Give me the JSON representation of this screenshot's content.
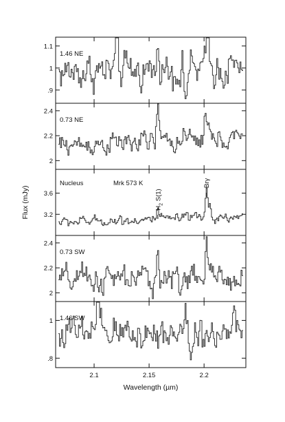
{
  "chart_data": {
    "type": "line",
    "title": "",
    "xlabel": "Wavelength (µm)",
    "ylabel": "Flux (mJy)",
    "xlim": [
      2.065,
      2.238
    ],
    "x_ticks": [
      2.1,
      2.15,
      2.2
    ],
    "x_tick_labels": [
      "2.1",
      "2.15",
      "2.2"
    ],
    "line_style": "histogram-step",
    "line_color": "#333333",
    "object_label": "Mrk 573 K",
    "line_annotations": [
      {
        "text": "H2 S(1)",
        "main": "H",
        "sub": "2",
        "rest": " S(1)",
        "x": 2.158
      },
      {
        "text": "Brγ",
        "x": 2.202
      }
    ],
    "panels": [
      {
        "name": "1.46 NE",
        "ylim": [
          0.84,
          1.14
        ],
        "y_ticks": [
          0.9,
          1.0,
          1.1
        ],
        "y_tick_labels": [
          ".9",
          "1",
          "1.1"
        ],
        "baseline": 0.98,
        "noise": 0.045,
        "slope": 0.02,
        "features": [
          {
            "x": 2.1205,
            "amp": 0.13
          },
          {
            "x": 2.159,
            "amp": 0.11
          },
          {
            "x": 2.2035,
            "amp": 0.17
          },
          {
            "x": 2.183,
            "amp": -0.13
          }
        ]
      },
      {
        "name": "0.73 NE",
        "ylim": [
          1.93,
          2.46
        ],
        "y_ticks": [
          2.0,
          2.2,
          2.4
        ],
        "y_tick_labels": [
          "2",
          "2.2",
          "2.4"
        ],
        "baseline": 2.12,
        "noise": 0.045,
        "slope": 0.06,
        "features": [
          {
            "x": 2.158,
            "amp": 0.28
          },
          {
            "x": 2.201,
            "amp": 0.18
          },
          {
            "x": 2.204,
            "amp": 0.1
          }
        ]
      },
      {
        "name": "Nucleus",
        "ylim": [
          2.8,
          4.05
        ],
        "y_ticks": [
          3.2,
          3.6
        ],
        "y_tick_labels": [
          "3.2",
          "3.6"
        ],
        "baseline": 3.05,
        "noise": 0.05,
        "slope": 0.1,
        "features": [
          {
            "x": 2.158,
            "amp": 0.17
          },
          {
            "x": 2.2025,
            "amp": 0.5
          },
          {
            "x": 2.2055,
            "amp": 0.22
          }
        ]
      },
      {
        "name": "0.73 SW",
        "ylim": [
          1.93,
          2.46
        ],
        "y_ticks": [
          2.0,
          2.2,
          2.4
        ],
        "y_tick_labels": [
          "2",
          "2.2",
          "2.4"
        ],
        "baseline": 2.1,
        "noise": 0.06,
        "slope": 0.02,
        "features": [
          {
            "x": 2.158,
            "amp": 0.2
          },
          {
            "x": 2.2025,
            "amp": 0.22
          }
        ]
      },
      {
        "name": "1.46 SW",
        "ylim": [
          0.75,
          1.1
        ],
        "y_ticks": [
          0.8,
          1.0
        ],
        "y_tick_labels": [
          ".8",
          "1"
        ],
        "baseline": 0.93,
        "noise": 0.05,
        "slope": 0.01,
        "features": [
          {
            "x": 2.1035,
            "amp": 0.18
          },
          {
            "x": 2.183,
            "amp": 0.1
          },
          {
            "x": 2.189,
            "amp": -0.12
          }
        ]
      }
    ]
  }
}
